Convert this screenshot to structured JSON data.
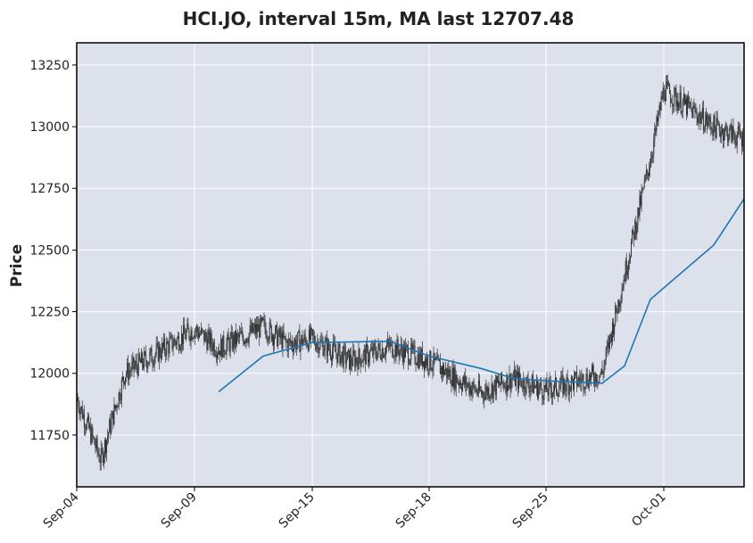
{
  "chart_data": {
    "type": "candlestick",
    "title": "HCI.JO, interval 15m, MA last 12707.48",
    "xlabel": "",
    "ylabel": "Price",
    "ylim": [
      11540,
      13340
    ],
    "y_ticks": [
      11750,
      12000,
      12250,
      12500,
      12750,
      13000,
      13250
    ],
    "x_ticks": [
      "Sep-04",
      "Sep-09",
      "Sep-15",
      "Sep-18",
      "Sep-25",
      "Oct-01"
    ],
    "grid": true,
    "colors": {
      "background": "#dce1ec",
      "grid": "#ffffff",
      "candle": "#333333",
      "ma": "#1f77b4",
      "frame": "#000000"
    },
    "price_path": [
      {
        "date": "Sep-04",
        "price": 11900
      },
      {
        "date": "Sep-05",
        "price": 11650
      },
      {
        "date": "Sep-06",
        "price": 12000
      },
      {
        "date": "Sep-09",
        "price": 12180
      },
      {
        "date": "Sep-10",
        "price": 12100
      },
      {
        "date": "Sep-12",
        "price": 12190
      },
      {
        "date": "Sep-13",
        "price": 12120
      },
      {
        "date": "Sep-15",
        "price": 12140
      },
      {
        "date": "Sep-16",
        "price": 12050
      },
      {
        "date": "Sep-17",
        "price": 12110
      },
      {
        "date": "Sep-18",
        "price": 12050
      },
      {
        "date": "Sep-19",
        "price": 11980
      },
      {
        "date": "Sep-20",
        "price": 11920
      },
      {
        "date": "Sep-23",
        "price": 11980
      },
      {
        "date": "Sep-25",
        "price": 11930
      },
      {
        "date": "Sep-26",
        "price": 11970
      },
      {
        "date": "Sep-27",
        "price": 12000
      },
      {
        "date": "Sep-28",
        "price": 12400
      },
      {
        "date": "Sep-30",
        "price": 12870
      },
      {
        "date": "Oct-01",
        "price": 13150
      },
      {
        "date": "Oct-02",
        "price": 13000
      },
      {
        "date": "Oct-03",
        "price": 12950
      }
    ],
    "ma_series": {
      "name": "MA",
      "points": [
        {
          "date": "Sep-10",
          "value": 11925
        },
        {
          "date": "Sep-12",
          "value": 12070
        },
        {
          "date": "Sep-15",
          "value": 12125
        },
        {
          "date": "Sep-17",
          "value": 12130
        },
        {
          "date": "Sep-18",
          "value": 12070
        },
        {
          "date": "Sep-20",
          "value": 12020
        },
        {
          "date": "Sep-23",
          "value": 11980
        },
        {
          "date": "Sep-25",
          "value": 11970
        },
        {
          "date": "Sep-27",
          "value": 11960
        },
        {
          "date": "Sep-28",
          "value": 12030
        },
        {
          "date": "Sep-30",
          "value": 12300
        },
        {
          "date": "Oct-02",
          "value": 12520
        },
        {
          "date": "Oct-03",
          "value": 12707.48
        }
      ]
    }
  }
}
